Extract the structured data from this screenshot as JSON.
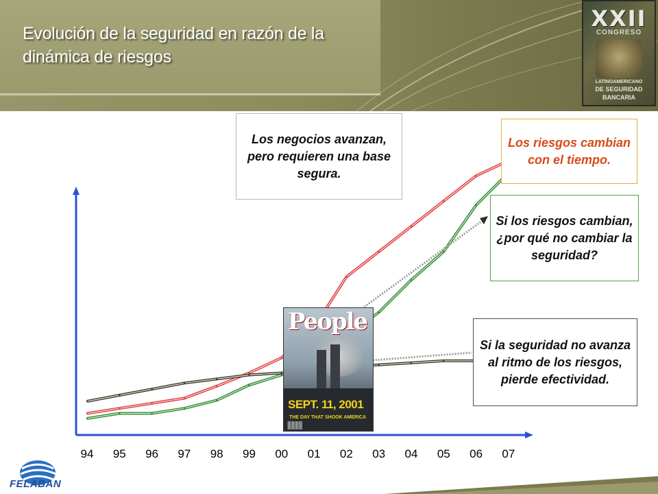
{
  "slide": {
    "title_line1": "Evolución de la seguridad en razón de  la",
    "title_line2": "dinámica de riesgos"
  },
  "badge": {
    "number": "XXII",
    "line_top": "CONGRESO",
    "line_mid": "LATINOAMERICANO",
    "line_low1": "DE SEGURIDAD",
    "line_low2": "BANCARIA"
  },
  "callouts": {
    "negocios": "Los negocios avanzan, pero requieren una base segura.",
    "riesgos": "Los riesgos cambian con el tiempo.",
    "pregunta": "Si los riesgos cambian, ¿por qué no cambiar la seguridad?",
    "efectividad": "Si la seguridad no avanza al ritmo de los riesgos, pierde efectividad."
  },
  "magazine": {
    "title": "People",
    "date": "SEPT. 11, 2001",
    "tagline": "THE DAY THAT SHOOK AMERICA"
  },
  "footer": {
    "logo_text": "FELABAN"
  },
  "colors": {
    "negocios": "#e03c3c",
    "riesgos": "#2e8b2e",
    "seguridad": "#3b3b2a",
    "axis": "#2f4fd6",
    "header": "#9a9a6d"
  },
  "chart_data": {
    "type": "line",
    "categories": [
      "94",
      "95",
      "96",
      "97",
      "98",
      "99",
      "00",
      "01",
      "02",
      "03",
      "04",
      "05",
      "06",
      "07"
    ],
    "series": [
      {
        "key": "negocios",
        "values": [
          2.0,
          2.5,
          3.0,
          3.5,
          4.7,
          6.0,
          7.5,
          10.5,
          15.5,
          18.0,
          20.5,
          23.0,
          25.5,
          27.0
        ]
      },
      {
        "key": "riesgos",
        "values": [
          1.5,
          2.0,
          2.0,
          2.5,
          3.3,
          4.8,
          5.8,
          7.2,
          9.7,
          12.0,
          15.2,
          18.0,
          22.6,
          25.8
        ]
      },
      {
        "key": "seguridad",
        "values": [
          3.2,
          3.8,
          4.4,
          5.0,
          5.4,
          5.8,
          6.0,
          6.3,
          6.6,
          6.8,
          7.0,
          7.2,
          7.2,
          7.2
        ]
      }
    ],
    "ylim": [
      0,
      30
    ],
    "grid": false,
    "legend": "none"
  }
}
